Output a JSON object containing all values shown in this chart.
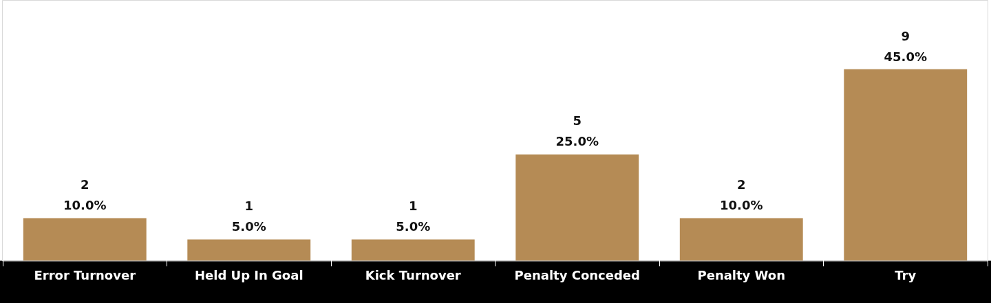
{
  "chart_data": {
    "type": "bar",
    "categories": [
      "Error Turnover",
      "Held Up In Goal",
      "Kick Turnover",
      "Penalty Conceded",
      "Penalty Won",
      "Try"
    ],
    "values": [
      2,
      1,
      1,
      5,
      2,
      9
    ],
    "color": "#b58b55",
    "value_labels": [
      "2\n10.0%",
      "1\n5.0%",
      "1\n5.0%",
      "5\n25.0%",
      "2\n10.0%",
      "9\n45.0%"
    ],
    "grid": false,
    "legend": false
  }
}
